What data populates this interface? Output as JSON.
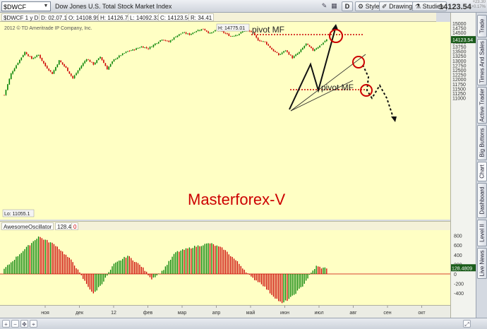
{
  "toolbar": {
    "symbol": "$DWCF",
    "description": "Dow Jones U.S. Total Stock Market Index",
    "period_button": "D",
    "style_label": "Style",
    "drawings_label": "Drawings",
    "studies_label": "Studies",
    "last_price": "14123.54",
    "net_change_top": "+23.30",
    "net_change_bottom": "+0.17%"
  },
  "quote_bar": {
    "symbol_period": "$DWCF 1 y D",
    "date": "D: 02.07.12",
    "open": "O: 14108.99",
    "high": "H: 14126.74",
    "low": "L: 14092.33",
    "close": "C: 14123.54",
    "range": "R: 34.41"
  },
  "main_chart": {
    "copyright": "2012 © TD Ameritrade IP Company, Inc.",
    "high_label": "H: 14775.01",
    "low_label": "Lo: 11055.1",
    "watermark": "Masterforex-V",
    "pivot_top_label": "pivot MF",
    "pivot_bottom_label": "pivot MF",
    "current_price_tag": "14123.54",
    "up_color": "#008000",
    "down_color": "#cc0000",
    "annotation_color": "#cc0000"
  },
  "oscillator": {
    "name": "AwesomeOscillator",
    "value": "128.48",
    "zero": "0",
    "current_value_tag": "128.4809"
  },
  "side_tabs": [
    "Trade",
    "Times And Sales",
    "Active Trader",
    "Big Buttons",
    "Chart",
    "Dashboard",
    "Level II",
    "Live News"
  ],
  "bottom_icons": [
    "zoom-in-icon",
    "zoom-out-icon",
    "pan-icon",
    "crosshair-icon",
    "expand-icon"
  ],
  "chart_data": [
    {
      "type": "candlestick",
      "title": "Dow Jones U.S. Total Stock Market Index",
      "ylim": [
        10500,
        15250
      ],
      "y_ticks": [
        11000,
        11250,
        11500,
        11750,
        12000,
        12250,
        12500,
        12750,
        13000,
        13250,
        13500,
        13750,
        14000,
        14250,
        14500,
        14750,
        15000
      ],
      "x_ticks": [
        "ноя",
        "дек",
        "12",
        "фев",
        "мар",
        "апр",
        "май",
        "июн",
        "июл",
        "авг",
        "сен",
        "окт"
      ],
      "high": 14775.01,
      "low": 11055.1,
      "last": 14123.54,
      "close_path": [
        [
          0,
          11150
        ],
        [
          4,
          12300
        ],
        [
          8,
          12900
        ],
        [
          12,
          13450
        ],
        [
          16,
          13100
        ],
        [
          20,
          13300
        ],
        [
          24,
          12700
        ],
        [
          28,
          12300
        ],
        [
          32,
          13000
        ],
        [
          36,
          12600
        ],
        [
          40,
          12050
        ],
        [
          44,
          12600
        ],
        [
          48,
          13100
        ],
        [
          52,
          12800
        ],
        [
          56,
          13200
        ],
        [
          60,
          12550
        ],
        [
          64,
          13050
        ],
        [
          68,
          13300
        ],
        [
          72,
          13500
        ],
        [
          76,
          13600
        ],
        [
          80,
          13750
        ],
        [
          84,
          13650
        ],
        [
          88,
          13900
        ],
        [
          92,
          14150
        ],
        [
          96,
          14000
        ],
        [
          100,
          14300
        ],
        [
          104,
          14500
        ],
        [
          108,
          14400
        ],
        [
          112,
          14600
        ],
        [
          116,
          14700
        ],
        [
          120,
          14450
        ],
        [
          124,
          14650
        ],
        [
          128,
          14500
        ],
        [
          132,
          14300
        ],
        [
          136,
          14400
        ],
        [
          140,
          14600
        ],
        [
          144,
          14550
        ],
        [
          148,
          14100
        ],
        [
          152,
          14000
        ],
        [
          156,
          13600
        ],
        [
          160,
          13300
        ],
        [
          164,
          13550
        ],
        [
          168,
          13150
        ],
        [
          172,
          13450
        ],
        [
          176,
          13900
        ],
        [
          180,
          13550
        ],
        [
          184,
          13800
        ],
        [
          188,
          14123.54
        ]
      ]
    },
    {
      "type": "bar",
      "title": "AwesomeOscillator",
      "ylim": [
        -650,
        950
      ],
      "y_ticks": [
        -400,
        -200,
        0,
        200,
        400,
        600,
        800
      ],
      "last": 128.4809,
      "shape": [
        [
          0,
          100
        ],
        [
          10,
          450
        ],
        [
          20,
          780
        ],
        [
          30,
          600
        ],
        [
          40,
          250
        ],
        [
          46,
          -100
        ],
        [
          52,
          -420
        ],
        [
          58,
          -150
        ],
        [
          64,
          200
        ],
        [
          72,
          380
        ],
        [
          80,
          160
        ],
        [
          86,
          -100
        ],
        [
          92,
          50
        ],
        [
          100,
          450
        ],
        [
          110,
          560
        ],
        [
          120,
          640
        ],
        [
          128,
          520
        ],
        [
          136,
          250
        ],
        [
          144,
          -70
        ],
        [
          150,
          -200
        ],
        [
          156,
          -430
        ],
        [
          162,
          -620
        ],
        [
          168,
          -470
        ],
        [
          174,
          -250
        ],
        [
          178,
          -30
        ],
        [
          182,
          160
        ],
        [
          186,
          120
        ],
        [
          188,
          128
        ]
      ]
    }
  ]
}
